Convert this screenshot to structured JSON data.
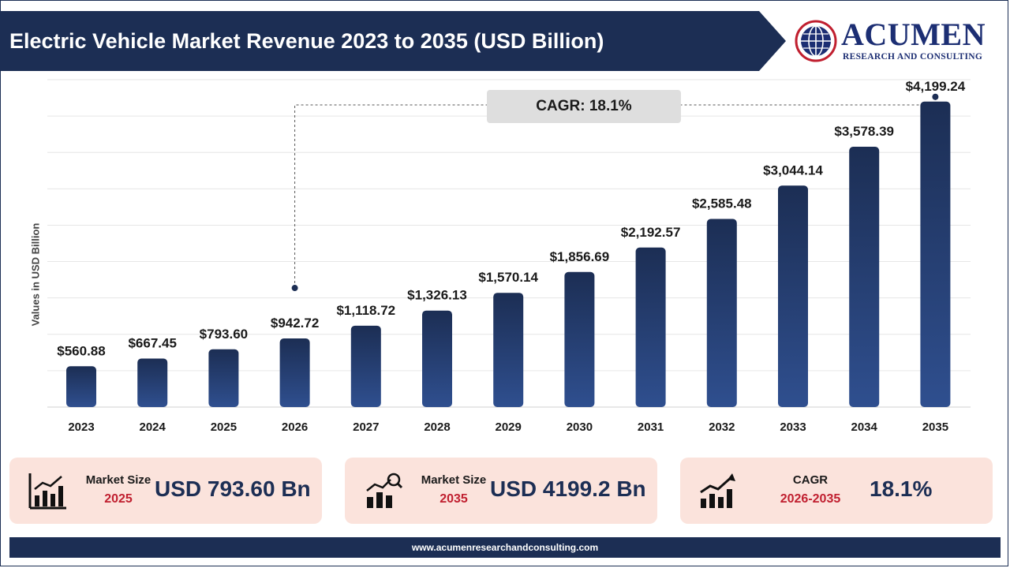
{
  "header": {
    "title": "Electric Vehicle Market Revenue 2023 to 2035 (USD Billion)",
    "brand": "ACUMEN",
    "brand_sub": "RESEARCH AND CONSULTING"
  },
  "chart_data": {
    "type": "bar",
    "title": "Electric Vehicle Market Revenue 2023 to 2035 (USD Billion)",
    "ylabel": "Values in USD Billion",
    "xlabel": "",
    "categories": [
      "2023",
      "2024",
      "2025",
      "2026",
      "2027",
      "2028",
      "2029",
      "2030",
      "2031",
      "2032",
      "2033",
      "2034",
      "2035"
    ],
    "values": [
      560.88,
      667.45,
      793.6,
      942.72,
      1118.72,
      1326.13,
      1570.14,
      1856.69,
      2192.57,
      2585.48,
      3044.14,
      3578.39,
      4199.24
    ],
    "data_labels": [
      "$560.88",
      "$667.45",
      "$793.60",
      "$942.72",
      "$1,118.72",
      "$1,326.13",
      "$1,570.14",
      "$1,856.69",
      "$2,192.57",
      "$2,585.48",
      "$3,044.14",
      "$3,578.39",
      "$4,199.24"
    ],
    "ylim": [
      0,
      4500
    ],
    "grid": true,
    "bar_color_top": "#1c2e54",
    "bar_color_bottom": "#2f4f8f",
    "annotation": {
      "label": "CAGR: 18.1%",
      "from": "2026",
      "to": "2035"
    }
  },
  "cards": [
    {
      "label": "Market Size",
      "year": "2025",
      "value": "USD 793.60 Bn",
      "icon": "bar-chart-icon"
    },
    {
      "label": "Market Size",
      "year": "2035",
      "value": "USD 4199.2 Bn",
      "icon": "growth-chart-icon"
    },
    {
      "label": "CAGR",
      "year": "2026-2035",
      "value": "18.1%",
      "icon": "trend-up-icon"
    }
  ],
  "footer": {
    "url": "www.acumenresearchandconsulting.com"
  },
  "colors": {
    "navy": "#1c2e54",
    "accent_red": "#c01f2f",
    "card_bg": "#fbe3dc"
  }
}
